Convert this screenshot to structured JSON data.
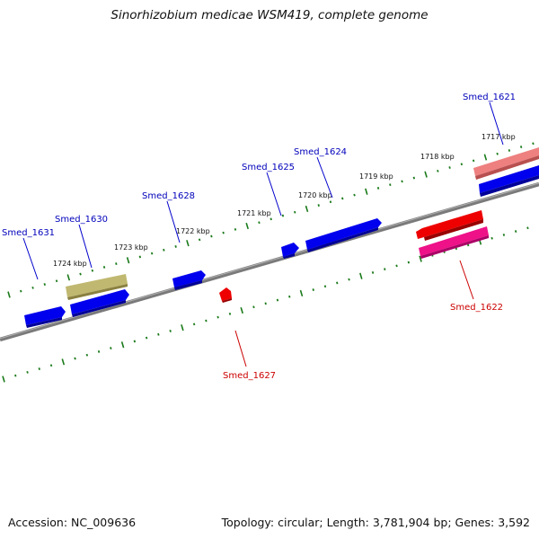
{
  "title": "Sinorhizobium medicae WSM419, complete genome",
  "footer": {
    "accession": "Accession: NC_009636",
    "stats": "Topology: circular; Length: 3,781,904 bp; Genes: 3,592"
  },
  "colors": {
    "forward_gene": "#0000ee",
    "reverse_gene": "#ee0000",
    "pink_gene": "#ee1188",
    "salmon_gene": "#ee7777",
    "olive_gene": "#b8b060",
    "backbone": "#7a7a7a",
    "ticks": "#1a7a1a",
    "label_forward": "#0000bb",
    "label_reverse": "#cc0000"
  },
  "ruler_labels": [
    "1717 kbp",
    "1718 kbp",
    "1719 kbp",
    "1720 kbp",
    "1721 kbp",
    "1722 kbp",
    "1723 kbp",
    "1724 kbp"
  ],
  "gene_labels": [
    {
      "name": "Smed_1621",
      "strand": "forward"
    },
    {
      "name": "Smed_1624",
      "strand": "forward"
    },
    {
      "name": "Smed_1625",
      "strand": "forward"
    },
    {
      "name": "Smed_1628",
      "strand": "forward"
    },
    {
      "name": "Smed_1630",
      "strand": "forward"
    },
    {
      "name": "Smed_1631",
      "strand": "forward"
    },
    {
      "name": "Smed_1622",
      "strand": "reverse"
    },
    {
      "name": "Smed_1627",
      "strand": "reverse"
    }
  ],
  "genes": [
    {
      "id": "smed_1621_upper",
      "color": "salmon_gene"
    },
    {
      "id": "smed_1621",
      "color": "forward_gene"
    },
    {
      "id": "smed_1622",
      "color": "reverse_gene"
    },
    {
      "id": "smed_1622_lower",
      "color": "pink_gene"
    },
    {
      "id": "smed_1624",
      "color": "forward_gene"
    },
    {
      "id": "smed_1625",
      "color": "forward_gene"
    },
    {
      "id": "smed_1627",
      "color": "reverse_gene"
    },
    {
      "id": "smed_1628",
      "color": "forward_gene"
    },
    {
      "id": "smed_1630_upper",
      "color": "olive_gene"
    },
    {
      "id": "smed_1630",
      "color": "forward_gene"
    },
    {
      "id": "smed_1631",
      "color": "forward_gene"
    }
  ]
}
